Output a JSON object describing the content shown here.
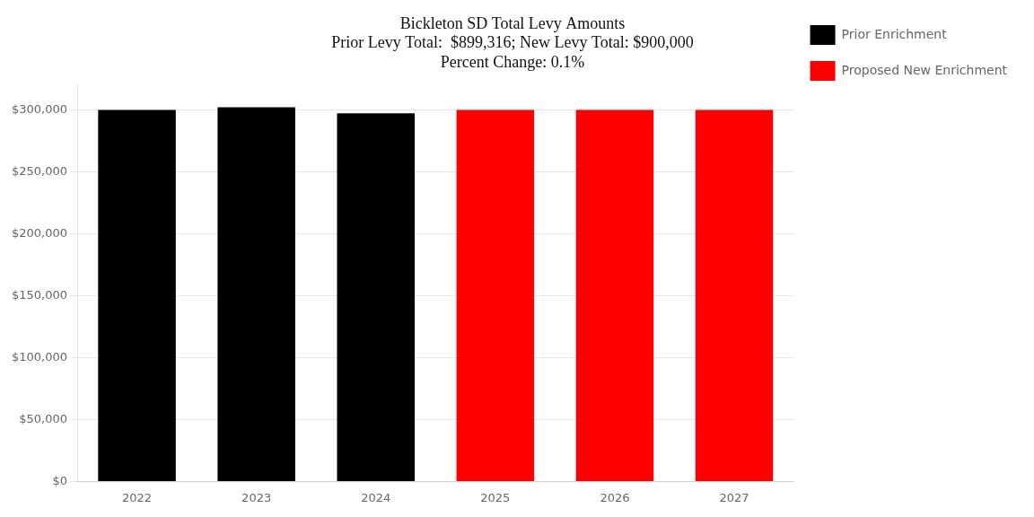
{
  "chart_data": {
    "type": "bar",
    "title": [
      "Bickleton SD Total Levy Amounts",
      "Prior Levy Total:  $899,316; New Levy Total: $900,000",
      "Percent Change: 0.1%"
    ],
    "categories": [
      "2022",
      "2023",
      "2024",
      "2025",
      "2026",
      "2027"
    ],
    "series": [
      {
        "name": "Prior Enrichment",
        "color": "#000000",
        "values": [
          300000,
          302158,
          297158,
          null,
          null,
          null
        ]
      },
      {
        "name": "Proposed New Enrichment",
        "color": "#ff0000",
        "values": [
          null,
          null,
          null,
          300000,
          300000,
          300000
        ]
      }
    ],
    "ylim": [
      0,
      320000
    ],
    "yticks": [
      {
        "value": 0,
        "label": "$0"
      },
      {
        "value": 50000,
        "label": "$50,000"
      },
      {
        "value": 100000,
        "label": "$100,000"
      },
      {
        "value": 150000,
        "label": "$150,000"
      },
      {
        "value": 200000,
        "label": "$200,000"
      },
      {
        "value": 250000,
        "label": "$250,000"
      },
      {
        "value": 300000,
        "label": "$300,000"
      }
    ],
    "grid": "y",
    "legend": "right"
  }
}
